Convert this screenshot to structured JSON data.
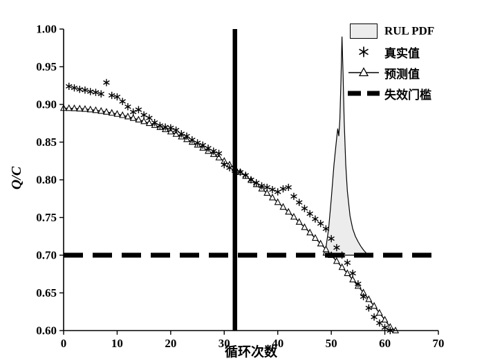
{
  "figure": {
    "ylabel": "Q/C",
    "xlabel": "循环次数"
  },
  "legend": {
    "items": [
      {
        "label": "RUL PDF",
        "symbol": "pdf-swatch"
      },
      {
        "label": "真实值",
        "symbol": "asterisk-marker"
      },
      {
        "label": "预测值",
        "symbol": "triangle-line-marker"
      },
      {
        "label": "失效门槛",
        "symbol": "thick-dashed-line"
      }
    ]
  },
  "chart_data": {
    "type": "line",
    "title": "",
    "xlabel": "循环次数",
    "ylabel": "Q/C",
    "xlim": [
      0,
      70
    ],
    "ylim": [
      0.6,
      1.0
    ],
    "grid": false,
    "legend_position": "top-right",
    "x_tick_values": [
      0,
      10,
      20,
      30,
      40,
      50,
      60,
      70
    ],
    "x_tick_labels": [
      "0",
      "10",
      "20",
      "30",
      "40",
      "50",
      "60",
      "70"
    ],
    "y_tick_values": [
      0.6,
      0.65,
      0.7,
      0.75,
      0.8,
      0.85,
      0.9,
      0.95,
      1.0
    ],
    "y_tick_labels": [
      "0.60",
      "0.65",
      "0.70",
      "0.75",
      "0.80",
      "0.85",
      "0.90",
      "0.95",
      "1.00"
    ],
    "colors": {
      "line": "#000000",
      "pdf_fill": "#ececec",
      "threshold": "#000000"
    },
    "failure_threshold": {
      "y": 0.7,
      "label": "失效门槛"
    },
    "prediction_start_line": {
      "x": 32
    },
    "series": [
      {
        "id": "true",
        "name": "真实值",
        "type": "scatter",
        "marker": "asterisk",
        "x": [
          1,
          2,
          3,
          4,
          5,
          6,
          7,
          8,
          9,
          10,
          11,
          12,
          13,
          14,
          15,
          16,
          17,
          18,
          19,
          20,
          21,
          22,
          23,
          24,
          25,
          26,
          27,
          28,
          29,
          30,
          31,
          32,
          33,
          34,
          35,
          36,
          37,
          38,
          39,
          40,
          41,
          42,
          43,
          44,
          45,
          46,
          47,
          48,
          49,
          50,
          51,
          52,
          53,
          54,
          55,
          56,
          57,
          58,
          59,
          60,
          61
        ],
        "y": [
          0.924,
          0.922,
          0.92,
          0.919,
          0.917,
          0.916,
          0.914,
          0.929,
          0.912,
          0.91,
          0.904,
          0.897,
          0.89,
          0.893,
          0.886,
          0.882,
          0.876,
          0.872,
          0.87,
          0.869,
          0.866,
          0.861,
          0.858,
          0.853,
          0.849,
          0.846,
          0.842,
          0.838,
          0.835,
          0.82,
          0.816,
          0.812,
          0.81,
          0.806,
          0.8,
          0.796,
          0.792,
          0.79,
          0.787,
          0.784,
          0.788,
          0.79,
          0.778,
          0.77,
          0.762,
          0.755,
          0.748,
          0.742,
          0.735,
          0.722,
          0.71,
          0.7,
          0.69,
          0.676,
          0.662,
          0.645,
          0.63,
          0.618,
          0.61,
          0.604,
          0.6
        ]
      },
      {
        "id": "predicted",
        "name": "预测值",
        "type": "line",
        "marker": "triangle",
        "x": [
          0,
          1,
          2,
          3,
          4,
          5,
          6,
          7,
          8,
          9,
          10,
          11,
          12,
          13,
          14,
          15,
          16,
          17,
          18,
          19,
          20,
          21,
          22,
          23,
          24,
          25,
          26,
          27,
          28,
          29,
          30,
          31,
          32,
          33,
          34,
          35,
          36,
          37,
          38,
          39,
          40,
          41,
          42,
          43,
          44,
          45,
          46,
          47,
          48,
          49,
          50,
          51,
          52,
          53,
          54,
          55,
          56,
          57,
          58,
          59,
          60,
          61,
          62
        ],
        "y": [
          0.895,
          0.8949,
          0.8947,
          0.8943,
          0.8938,
          0.8931,
          0.8922,
          0.8912,
          0.89,
          0.8887,
          0.8872,
          0.8856,
          0.8838,
          0.8818,
          0.8797,
          0.8775,
          0.875,
          0.8725,
          0.8697,
          0.8668,
          0.8638,
          0.8606,
          0.8572,
          0.8537,
          0.8501,
          0.8463,
          0.8423,
          0.8381,
          0.8339,
          0.8294,
          0.8248,
          0.82,
          0.8151,
          0.8101,
          0.8049,
          0.7995,
          0.7939,
          0.7882,
          0.7824,
          0.7764,
          0.7702,
          0.7639,
          0.7574,
          0.7508,
          0.744,
          0.737,
          0.7299,
          0.7227,
          0.7152,
          0.7077,
          0.7,
          0.6921,
          0.684,
          0.6759,
          0.6675,
          0.659,
          0.6503,
          0.6415,
          0.6326,
          0.6234,
          0.6142,
          0.6047,
          0.6
        ]
      },
      {
        "id": "pdf",
        "name": "RUL PDF",
        "type": "area",
        "fill": "#ececec",
        "x": [
          48.5,
          49,
          49.5,
          50,
          50.5,
          51,
          51.2,
          51.4,
          51.6,
          51.8,
          52,
          52.2,
          52.4,
          52.7,
          53,
          53.5,
          54,
          54.5,
          55,
          55.5,
          56,
          56.5,
          57
        ],
        "y": [
          0.7,
          0.71,
          0.735,
          0.775,
          0.82,
          0.855,
          0.868,
          0.858,
          0.88,
          0.93,
          0.99,
          0.94,
          0.88,
          0.82,
          0.785,
          0.752,
          0.735,
          0.725,
          0.718,
          0.712,
          0.707,
          0.703,
          0.7
        ]
      }
    ]
  }
}
